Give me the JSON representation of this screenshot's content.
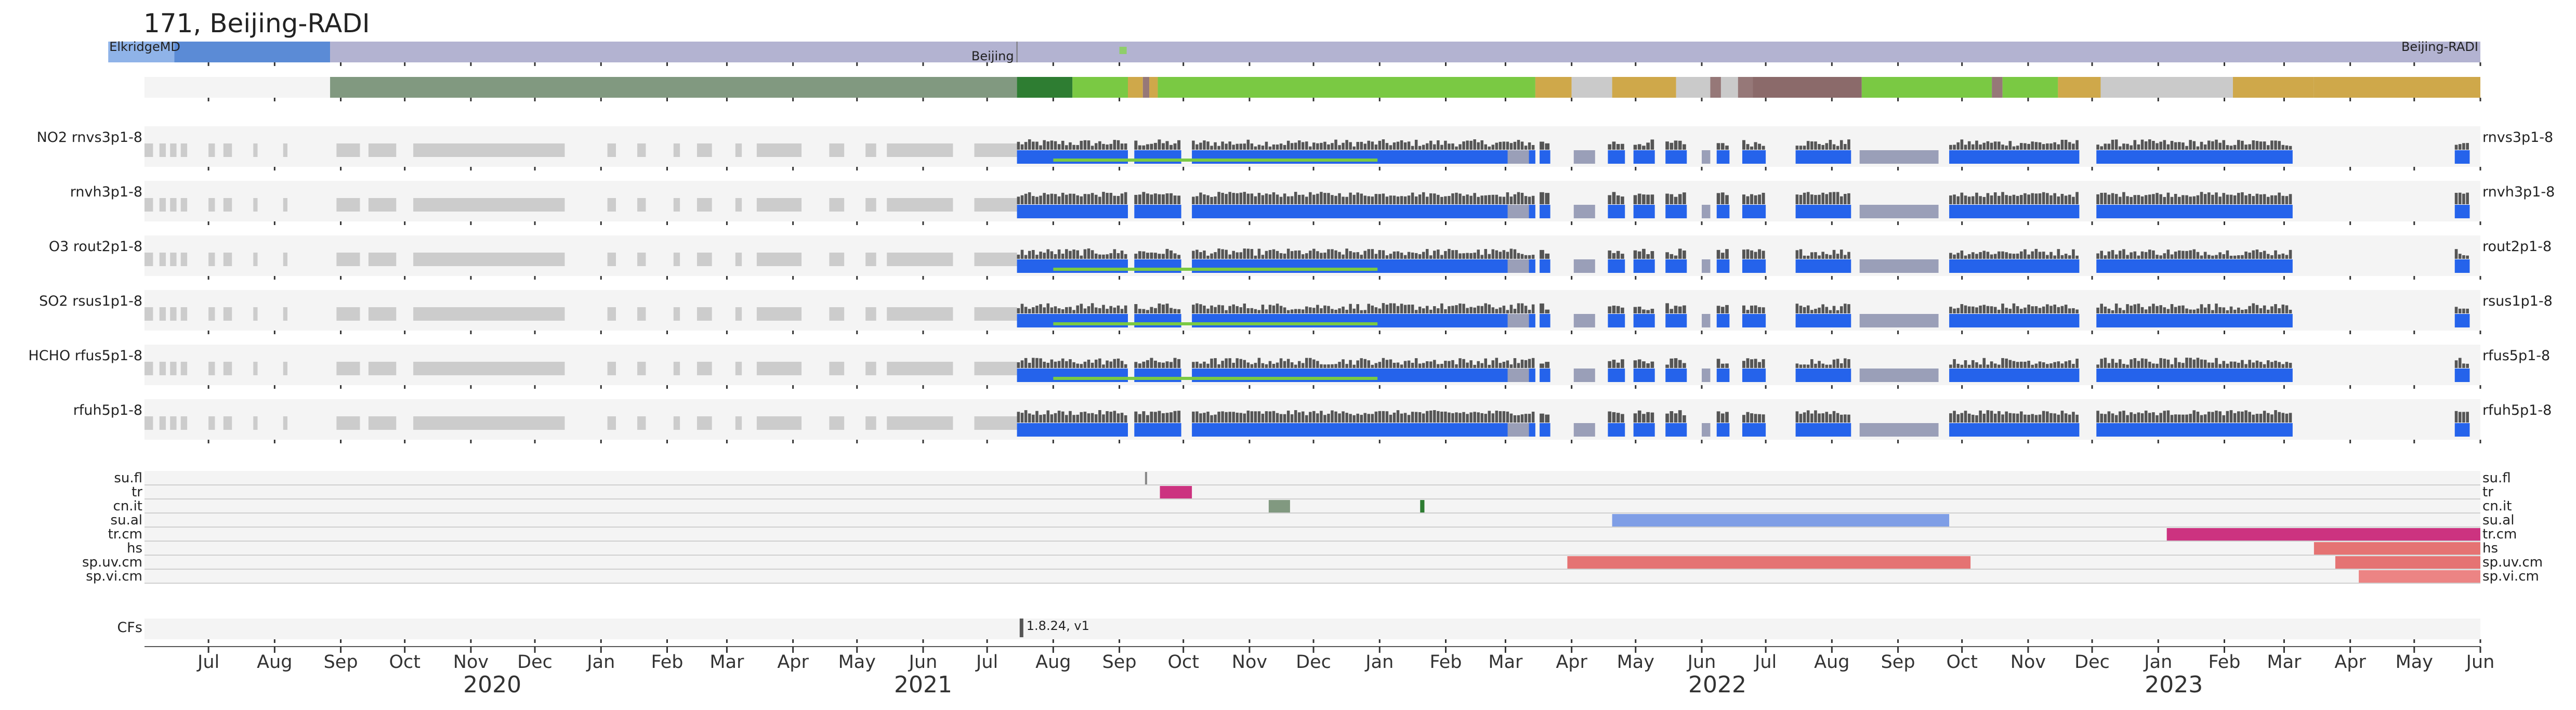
{
  "title": "171, Beijing-RADI",
  "colors": {
    "panel_bg": "#f4f4f4",
    "gray_data": "#cccccc",
    "dark_bars": "#555555",
    "blue_bars": "#2563eb",
    "mid_bars": "#9a9fb8",
    "validity_line": "#7ac943",
    "location_lavender": "#b3b3d1",
    "location_blue": "#5b8bd6",
    "location_lightblue": "#8fb3e8",
    "location_green_dot": "#8fce6a",
    "op_sage": "#819980",
    "op_darkgreen": "#2e7d32",
    "op_lime": "#7ac943",
    "op_gold": "#cfa84a",
    "op_silver": "#cacaca",
    "op_mauve": "#967878",
    "op_brown": "#8b6a6a",
    "flag_magenta": "#cc3380",
    "flag_sage": "#819980",
    "flag_periwinkle": "#7f9ee6",
    "flag_salmon": "#e57373",
    "flag_salmon_light": "#ec8484",
    "cf_bar": "#555555"
  },
  "location_bar": {
    "labels": [
      "ElkridgeMD",
      "Beijing",
      "Beijing-RADI"
    ],
    "segments": [
      {
        "start": "2020-05-15",
        "end": "2020-06-15",
        "color": "#8fb3e8"
      },
      {
        "start": "2020-06-15",
        "end": "2020-08-27",
        "color": "#5b8bd6"
      },
      {
        "start": "2020-08-27",
        "end": "2023-06-01",
        "color": "#b3b3d1"
      }
    ],
    "marker_date": "2021-09-01"
  },
  "operation_bar": {
    "segments": [
      {
        "start": "2020-08-27",
        "end": "2021-07-15",
        "color": "#819980"
      },
      {
        "start": "2021-07-15",
        "end": "2021-08-10",
        "color": "#2e7d32"
      },
      {
        "start": "2021-08-10",
        "end": "2021-09-05",
        "color": "#7ac943"
      },
      {
        "start": "2021-09-05",
        "end": "2021-09-12",
        "color": "#cfa84a"
      },
      {
        "start": "2021-09-12",
        "end": "2021-09-15",
        "color": "#967878"
      },
      {
        "start": "2021-09-15",
        "end": "2021-09-19",
        "color": "#cfa84a"
      },
      {
        "start": "2021-09-19",
        "end": "2022-03-15",
        "color": "#7ac943"
      },
      {
        "start": "2022-03-15",
        "end": "2022-04-01",
        "color": "#cfa84a"
      },
      {
        "start": "2022-04-01",
        "end": "2022-04-20",
        "color": "#cacaca"
      },
      {
        "start": "2022-04-20",
        "end": "2022-05-20",
        "color": "#cfa84a"
      },
      {
        "start": "2022-05-20",
        "end": "2022-06-05",
        "color": "#cacaca"
      },
      {
        "start": "2022-06-05",
        "end": "2022-06-10",
        "color": "#967878"
      },
      {
        "start": "2022-06-10",
        "end": "2022-06-18",
        "color": "#cacaca"
      },
      {
        "start": "2022-06-18",
        "end": "2022-06-25",
        "color": "#967878"
      },
      {
        "start": "2022-06-25",
        "end": "2022-08-15",
        "color": "#8b6a6a"
      },
      {
        "start": "2022-08-15",
        "end": "2022-10-15",
        "color": "#7ac943"
      },
      {
        "start": "2022-10-15",
        "end": "2022-10-20",
        "color": "#967878"
      },
      {
        "start": "2022-10-20",
        "end": "2022-11-15",
        "color": "#7ac943"
      },
      {
        "start": "2022-11-15",
        "end": "2022-12-05",
        "color": "#cfa84a"
      },
      {
        "start": "2022-12-05",
        "end": "2023-02-05",
        "color": "#cacaca"
      },
      {
        "start": "2023-02-05",
        "end": "2023-03-15",
        "color": "#cfa84a"
      },
      {
        "start": "2023-03-15",
        "end": "2023-06-01",
        "color": "#cfa84a"
      }
    ]
  },
  "chart_data": {
    "type": "bar",
    "title": "171, Beijing-RADI",
    "x_range": [
      "2020-06-01",
      "2023-06-01"
    ],
    "x_tick_labels": [
      "Jul",
      "Aug",
      "Sep",
      "Oct",
      "Nov",
      "Dec",
      "Jan",
      "Feb",
      "Mar",
      "Apr",
      "May",
      "Jun",
      "Jul",
      "Aug",
      "Sep",
      "Oct",
      "Nov",
      "Dec",
      "Jan",
      "Feb",
      "Mar",
      "Apr",
      "May",
      "Jun",
      "Jul",
      "Aug",
      "Sep",
      "Oct",
      "Nov",
      "Dec",
      "Jan",
      "Feb",
      "Mar",
      "Apr",
      "May",
      "Jun"
    ],
    "year_labels": [
      "2020",
      "2021",
      "2022",
      "2023"
    ],
    "product_rows": [
      {
        "left_label": "NO2  rnvs3p1-8",
        "right_label": "rnvs3p1-8",
        "validity": [
          "2021-08-01",
          "2021-12-31"
        ]
      },
      {
        "left_label": "rnvh3p1-8",
        "right_label": "rnvh3p1-8",
        "validity": null
      },
      {
        "left_label": "O3  rout2p1-8",
        "right_label": "rout2p1-8",
        "validity": [
          "2021-08-01",
          "2021-12-31"
        ]
      },
      {
        "left_label": "SO2  rsus1p1-8",
        "right_label": "rsus1p1-8",
        "validity": [
          "2021-08-01",
          "2021-12-31"
        ]
      },
      {
        "left_label": "HCHO  rfus5p1-8",
        "right_label": "rfus5p1-8",
        "validity": [
          "2021-08-01",
          "2021-12-31"
        ]
      },
      {
        "left_label": "rfuh5p1-8",
        "right_label": "rfuh5p1-8",
        "validity": null
      }
    ],
    "gray_data_periods": [
      [
        "2020-06-01",
        "2020-06-05"
      ],
      [
        "2020-06-08",
        "2020-06-11"
      ],
      [
        "2020-06-13",
        "2020-06-16"
      ],
      [
        "2020-06-18",
        "2020-06-21"
      ],
      [
        "2020-07-01",
        "2020-07-04"
      ],
      [
        "2020-07-08",
        "2020-07-12"
      ],
      [
        "2020-07-22",
        "2020-07-24"
      ],
      [
        "2020-08-05",
        "2020-08-07"
      ],
      [
        "2020-08-30",
        "2020-09-10"
      ],
      [
        "2020-09-14",
        "2020-09-27"
      ],
      [
        "2020-10-05",
        "2020-12-15"
      ],
      [
        "2021-01-04",
        "2021-01-08"
      ],
      [
        "2021-01-18",
        "2021-01-22"
      ],
      [
        "2021-02-04",
        "2021-02-07"
      ],
      [
        "2021-02-15",
        "2021-02-22"
      ],
      [
        "2021-03-05",
        "2021-03-08"
      ],
      [
        "2021-03-15",
        "2021-04-05"
      ],
      [
        "2021-04-18",
        "2021-04-25"
      ],
      [
        "2021-05-05",
        "2021-05-10"
      ],
      [
        "2021-05-15",
        "2021-06-15"
      ],
      [
        "2021-06-25",
        "2021-07-15"
      ]
    ],
    "active_data_periods": [
      [
        "2021-07-15",
        "2021-09-05"
      ],
      [
        "2021-09-08",
        "2021-09-30"
      ],
      [
        "2021-10-05",
        "2022-03-15"
      ],
      [
        "2022-03-17",
        "2022-03-22"
      ],
      [
        "2022-04-18",
        "2022-04-26"
      ],
      [
        "2022-04-30",
        "2022-05-10"
      ],
      [
        "2022-05-15",
        "2022-05-25"
      ],
      [
        "2022-06-08",
        "2022-06-14"
      ],
      [
        "2022-06-20",
        "2022-07-01"
      ],
      [
        "2022-07-15",
        "2022-08-10"
      ],
      [
        "2022-09-25",
        "2022-11-25"
      ],
      [
        "2022-12-03",
        "2023-03-05"
      ],
      [
        "2023-05-20",
        "2023-05-27"
      ]
    ],
    "mid_gray_periods": [
      [
        "2022-03-02",
        "2022-03-12"
      ],
      [
        "2022-04-02",
        "2022-04-12"
      ],
      [
        "2022-06-01",
        "2022-06-05"
      ],
      [
        "2022-08-14",
        "2022-09-20"
      ]
    ],
    "flag_rows": [
      {
        "label": "su.fl",
        "segments": [
          {
            "start": "2021-09-13",
            "end": "2021-09-14",
            "color": "#888888"
          }
        ]
      },
      {
        "label": "tr",
        "segments": [
          {
            "start": "2021-09-20",
            "end": "2021-10-05",
            "color": "#cc3380"
          }
        ]
      },
      {
        "label": "cn.it",
        "segments": [
          {
            "start": "2021-11-10",
            "end": "2021-11-20",
            "color": "#819980"
          },
          {
            "start": "2022-01-20",
            "end": "2022-01-22",
            "color": "#2e7d32"
          }
        ]
      },
      {
        "label": "su.al",
        "segments": [
          {
            "start": "2022-04-20",
            "end": "2022-09-25",
            "color": "#7f9ee6"
          }
        ]
      },
      {
        "label": "tr.cm",
        "segments": [
          {
            "start": "2023-01-05",
            "end": "2023-06-01",
            "color": "#cc3380"
          }
        ]
      },
      {
        "label": "hs",
        "segments": [
          {
            "start": "2023-03-15",
            "end": "2023-06-01",
            "color": "#e57373"
          }
        ]
      },
      {
        "label": "sp.uv.cm",
        "segments": [
          {
            "start": "2022-03-30",
            "end": "2022-10-05",
            "color": "#e57373"
          },
          {
            "start": "2023-03-25",
            "end": "2023-06-01",
            "color": "#e57373"
          }
        ]
      },
      {
        "label": "sp.vi.cm",
        "segments": [
          {
            "start": "2023-04-05",
            "end": "2023-06-01",
            "color": "#ec8484"
          }
        ]
      }
    ],
    "cf_row": {
      "label": "CFs",
      "marker_date": "2021-07-17",
      "annotation": "1.8.24, v1"
    }
  }
}
